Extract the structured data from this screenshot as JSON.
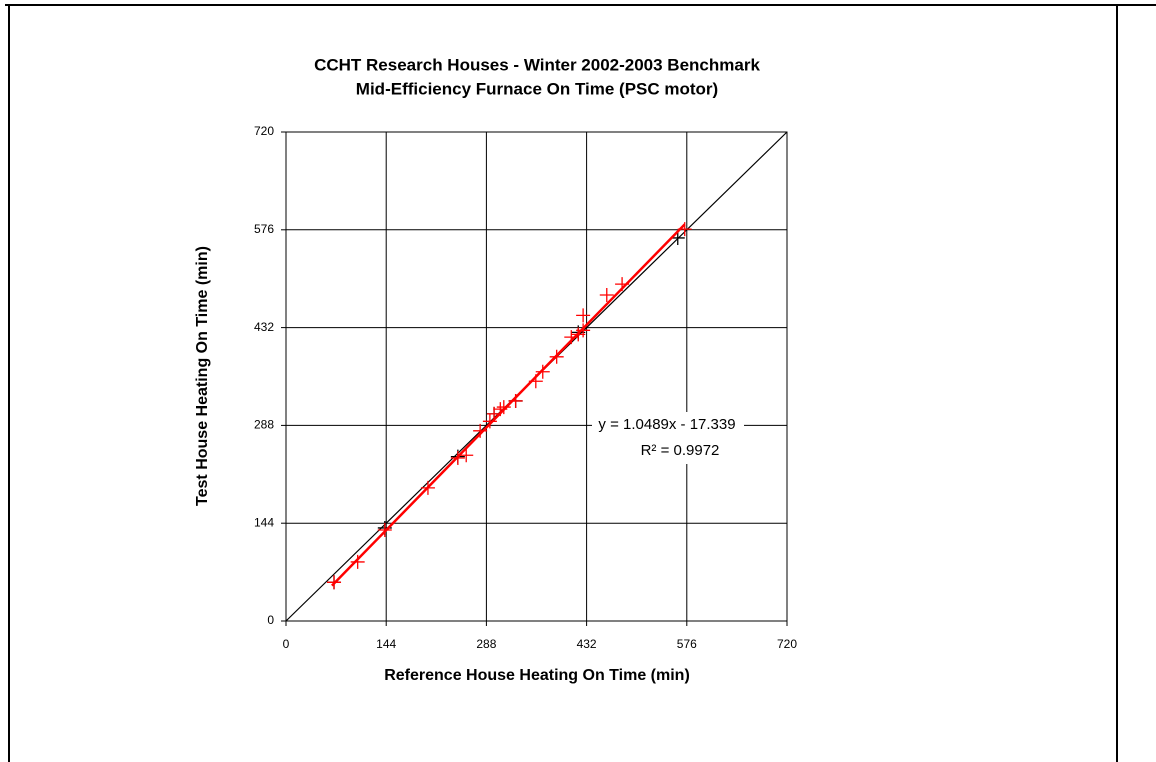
{
  "chart_data": {
    "type": "scatter",
    "title": "CCHT Research Houses - Winter 2002-2003 Benchmark",
    "subtitle": "Mid-Efficiency Furnace On Time (PSC motor)",
    "x_label": "Reference House Heating On Time (min)",
    "y_label": "Test House Heating On Time (min)",
    "xlim": [
      0,
      720
    ],
    "ylim": [
      0,
      720
    ],
    "xticks": [
      0,
      144,
      288,
      432,
      576,
      720
    ],
    "yticks": [
      0,
      144,
      288,
      432,
      576,
      720
    ],
    "grid": true,
    "series": [
      {
        "color": "#000000",
        "x": [
          69,
          142,
          247,
          299,
          330,
          420,
          563
        ],
        "values": [
          57,
          137,
          242,
          305,
          324,
          425,
          564
        ]
      },
      {
        "color": "#ff0000",
        "x": [
          69,
          103,
          142,
          204,
          247,
          259,
          279,
          293,
          299,
          308,
          313,
          330,
          359,
          369,
          389,
          410,
          420,
          427,
          427,
          461,
          483,
          573
        ],
        "values": [
          57,
          87,
          134,
          196,
          240,
          244,
          280,
          294,
          305,
          312,
          315,
          324,
          353,
          367,
          389,
          418,
          422,
          450,
          428,
          480,
          496,
          577
        ]
      }
    ],
    "reference_line": {
      "color": "#000000",
      "x": [
        0,
        720
      ],
      "values": [
        0,
        720
      ]
    },
    "trendline": {
      "color": "#ff0000",
      "x": [
        66,
        573
      ],
      "values": [
        52,
        584
      ]
    },
    "annotations": [
      "y = 1.0489x - 17.339",
      "R² = 0.9972"
    ]
  }
}
